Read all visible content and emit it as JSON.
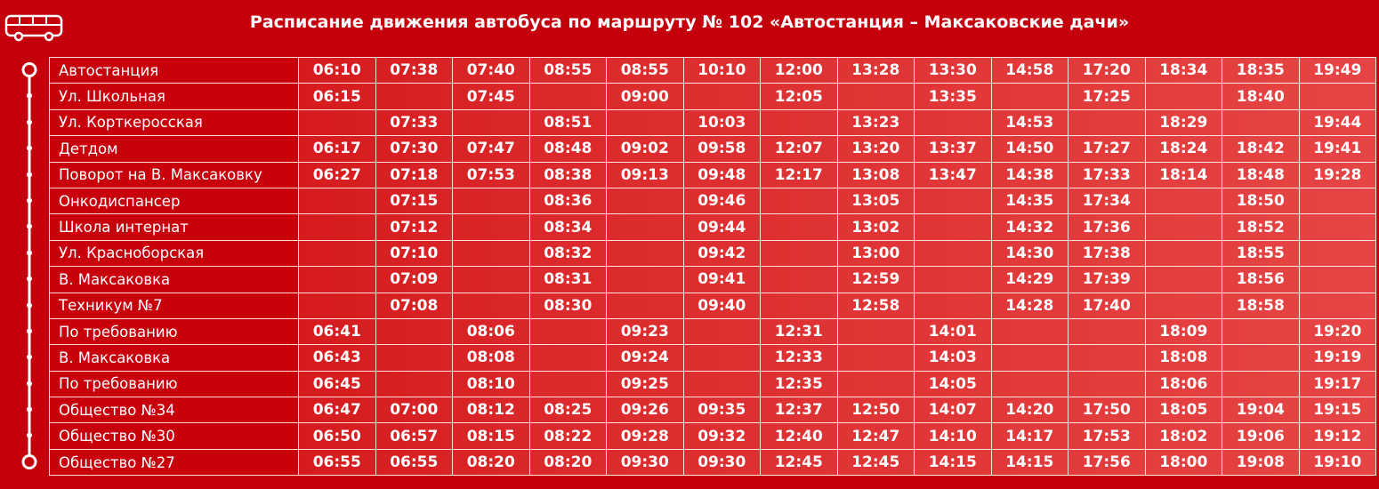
{
  "header": {
    "title": "Расписание движения автобуса по маршруту № 102 «Автостанция – Максаковские дачи»"
  },
  "table": {
    "rows": [
      {
        "stop": "Автостанция",
        "times": [
          "06:10",
          "07:38",
          "07:40",
          "08:55",
          "08:55",
          "10:10",
          "12:00",
          "13:28",
          "13:30",
          "14:58",
          "17:20",
          "18:34",
          "18:35",
          "19:49"
        ]
      },
      {
        "stop": "Ул. Школьная",
        "times": [
          "06:15",
          null,
          "07:45",
          null,
          "09:00",
          null,
          "12:05",
          null,
          "13:35",
          null,
          "17:25",
          null,
          "18:40",
          null
        ]
      },
      {
        "stop": "Ул. Корткеросская",
        "times": [
          null,
          "07:33",
          null,
          "08:51",
          null,
          "10:03",
          null,
          "13:23",
          null,
          "14:53",
          null,
          "18:29",
          null,
          "19:44"
        ]
      },
      {
        "stop": "Детдом",
        "times": [
          "06:17",
          "07:30",
          "07:47",
          "08:48",
          "09:02",
          "09:58",
          "12:07",
          "13:20",
          "13:37",
          "14:50",
          "17:27",
          "18:24",
          "18:42",
          "19:41"
        ]
      },
      {
        "stop": "Поворот на В. Максаковку",
        "times": [
          "06:27",
          "07:18",
          "07:53",
          "08:38",
          "09:13",
          "09:48",
          "12:17",
          "13:08",
          "13:47",
          "14:38",
          "17:33",
          "18:14",
          "18:48",
          "19:28"
        ]
      },
      {
        "stop": "Онкодиспансер",
        "times": [
          null,
          "07:15",
          null,
          "08:36",
          null,
          "09:46",
          null,
          "13:05",
          null,
          "14:35",
          "17:34",
          null,
          "18:50",
          null
        ]
      },
      {
        "stop": "Школа интернат",
        "times": [
          null,
          "07:12",
          null,
          "08:34",
          null,
          "09:44",
          null,
          "13:02",
          null,
          "14:32",
          "17:36",
          null,
          "18:52",
          null
        ]
      },
      {
        "stop": "Ул. Красноборская",
        "times": [
          null,
          "07:10",
          null,
          "08:32",
          null,
          "09:42",
          null,
          "13:00",
          null,
          "14:30",
          "17:38",
          null,
          "18:55",
          null
        ]
      },
      {
        "stop": "В. Максаковка",
        "times": [
          null,
          "07:09",
          null,
          "08:31",
          null,
          "09:41",
          null,
          "12:59",
          null,
          "14:29",
          "17:39",
          null,
          "18:56",
          null
        ]
      },
      {
        "stop": "Техникум №7",
        "times": [
          null,
          "07:08",
          null,
          "08:30",
          null,
          "09:40",
          null,
          "12:58",
          null,
          "14:28",
          "17:40",
          null,
          "18:58",
          null
        ]
      },
      {
        "stop": "По требованию",
        "times": [
          "06:41",
          null,
          "08:06",
          null,
          "09:23",
          null,
          "12:31",
          null,
          "14:01",
          null,
          null,
          "18:09",
          null,
          "19:20"
        ]
      },
      {
        "stop": "В. Максаковка",
        "times": [
          "06:43",
          null,
          "08:08",
          null,
          "09:24",
          null,
          "12:33",
          null,
          "14:03",
          null,
          null,
          "18:08",
          null,
          "19:19"
        ]
      },
      {
        "stop": "По требованию",
        "times": [
          "06:45",
          null,
          "08:10",
          null,
          "09:25",
          null,
          "12:35",
          null,
          "14:05",
          null,
          null,
          "18:06",
          null,
          "19:17"
        ]
      },
      {
        "stop": "Общество №34",
        "times": [
          "06:47",
          "07:00",
          "08:12",
          "08:25",
          "09:26",
          "09:35",
          "12:37",
          "12:50",
          "14:07",
          "14:20",
          "17:50",
          "18:05",
          "19:04",
          "19:15"
        ]
      },
      {
        "stop": "Общество №30",
        "times": [
          "06:50",
          "06:57",
          "08:15",
          "08:22",
          "09:28",
          "09:32",
          "12:40",
          "12:47",
          "14:10",
          "14:17",
          "17:53",
          "18:02",
          "19:06",
          "19:12"
        ]
      },
      {
        "stop": "Общество №27",
        "times": [
          "06:55",
          "06:55",
          "08:20",
          "08:20",
          "09:30",
          "09:30",
          "12:45",
          "12:45",
          "14:15",
          "14:15",
          "17:56",
          "18:00",
          "19:08",
          "19:10"
        ]
      }
    ]
  }
}
